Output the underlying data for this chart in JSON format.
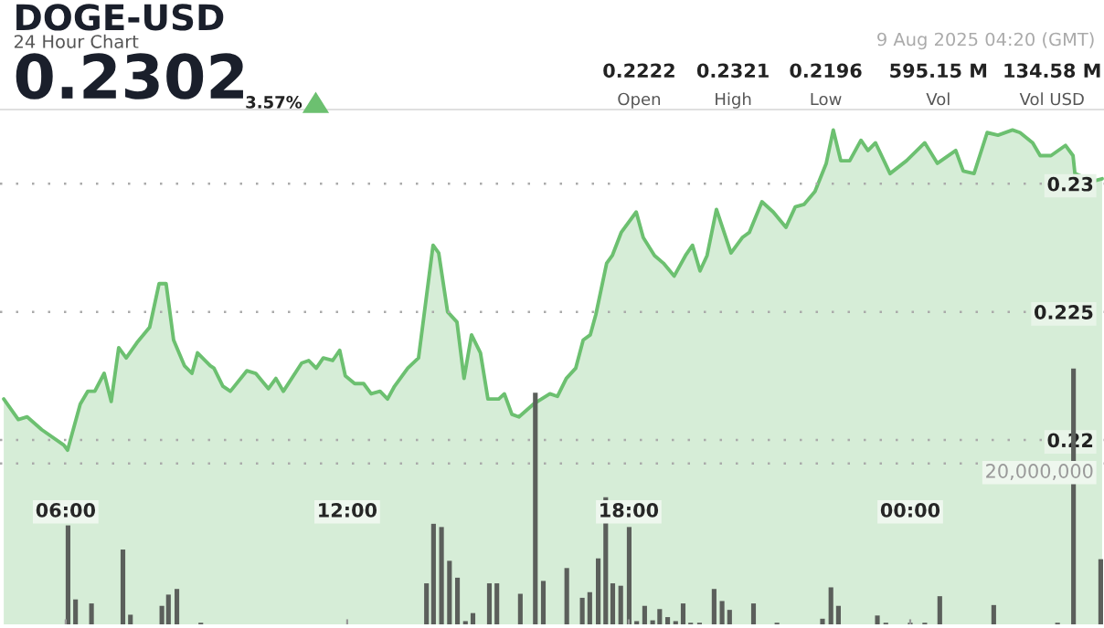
{
  "chart_data": {
    "type": "area",
    "title": "DOGE-USD",
    "subtitle": "24 Hour Chart",
    "annotations": [
      "0.2302",
      "3.57%",
      "9 Aug 2025 04:20 (GMT)",
      "0.2222",
      "Open",
      "0.2321",
      "High",
      "0.2196",
      "Low",
      "595.15 M",
      "Vol",
      "134.58 M",
      "Vol USD"
    ],
    "xlim": [
      4.6,
      28.13
    ],
    "xticks": [
      {
        "value": 6,
        "label": "06:00"
      },
      {
        "value": 12,
        "label": "12:00"
      },
      {
        "value": 18,
        "label": "18:00"
      },
      {
        "value": 24,
        "label": "00:00"
      }
    ],
    "ylim": [
      0.2128,
      0.2329
    ],
    "yticks": [
      0.22,
      0.225,
      0.23
    ],
    "y2lim": [
      0,
      64000000
    ],
    "y2ticks": [
      {
        "value": 20000000,
        "label": "20,000,000"
      }
    ],
    "grid": "y",
    "series": [
      {
        "color": "#6cc070",
        "x": [
          4.68,
          4.99,
          5.18,
          5.49,
          5.96,
          6.04,
          6.31,
          6.47,
          6.62,
          6.82,
          6.97,
          7.13,
          7.29,
          7.52,
          7.79,
          7.99,
          8.14,
          8.3,
          8.53,
          8.69,
          8.81,
          9.08,
          9.16,
          9.35,
          9.51,
          9.86,
          10.05,
          10.32,
          10.48,
          10.64,
          11.03,
          11.18,
          11.34,
          11.49,
          11.69,
          11.84,
          11.96,
          12.16,
          12.35,
          12.51,
          12.7,
          12.86,
          13.01,
          13.29,
          13.52,
          13.83,
          13.95,
          14.14,
          14.34,
          14.49,
          14.65,
          14.84,
          15.0,
          15.23,
          15.35,
          15.51,
          15.66,
          15.97,
          16.32,
          16.48,
          16.67,
          16.87,
          17.03,
          17.18,
          17.3,
          17.53,
          17.65,
          17.84,
          18.16,
          18.31,
          18.55,
          18.74,
          18.97,
          19.21,
          19.36,
          19.52,
          19.67,
          19.87,
          20.18,
          20.42,
          20.57,
          20.84,
          21.08,
          21.35,
          21.55,
          21.74,
          21.97,
          22.21,
          22.36,
          22.52,
          22.71,
          22.95,
          23.1,
          23.26,
          23.57,
          23.92,
          24.31,
          24.58,
          24.97,
          25.13,
          25.36,
          25.64,
          25.87,
          26.18,
          26.34,
          26.61,
          26.77,
          27.0,
          27.31,
          27.47,
          27.51,
          27.89,
          28.09
        ],
        "values": [
          0.2216,
          0.2208,
          0.2209,
          0.2204,
          0.2198,
          0.2196,
          0.2214,
          0.2219,
          0.2219,
          0.2226,
          0.2215,
          0.2236,
          0.2232,
          0.2238,
          0.2244,
          0.2261,
          0.2261,
          0.2239,
          0.2229,
          0.2226,
          0.2234,
          0.2229,
          0.2228,
          0.2221,
          0.2219,
          0.2227,
          0.2226,
          0.222,
          0.2224,
          0.2219,
          0.223,
          0.2231,
          0.2228,
          0.2232,
          0.2231,
          0.2235,
          0.2225,
          0.2222,
          0.2222,
          0.2218,
          0.2219,
          0.2216,
          0.2221,
          0.2228,
          0.2232,
          0.2276,
          0.2273,
          0.225,
          0.2246,
          0.2224,
          0.2241,
          0.2234,
          0.2216,
          0.2216,
          0.2218,
          0.221,
          0.2209,
          0.2214,
          0.2218,
          0.2217,
          0.2224,
          0.2228,
          0.2239,
          0.2241,
          0.2249,
          0.2269,
          0.2272,
          0.2281,
          0.2289,
          0.2279,
          0.2272,
          0.2269,
          0.2264,
          0.2272,
          0.2276,
          0.2266,
          0.2272,
          0.229,
          0.2273,
          0.2279,
          0.2281,
          0.2293,
          0.2289,
          0.2283,
          0.2291,
          0.2292,
          0.2297,
          0.2308,
          0.2321,
          0.2309,
          0.2309,
          0.2317,
          0.2313,
          0.2316,
          0.2304,
          0.2309,
          0.2316,
          0.2308,
          0.2313,
          0.2305,
          0.2304,
          0.232,
          0.2319,
          0.2321,
          0.232,
          0.2316,
          0.2311,
          0.2311,
          0.2315,
          0.2311,
          0.2304,
          0.2301,
          0.2302
        ]
      },
      {
        "type": "bar",
        "axis": "y2",
        "color": "#5b5f5b",
        "x": [
          6.05,
          6.21,
          6.55,
          7.22,
          7.38,
          8.05,
          8.19,
          8.37,
          8.88,
          13.69,
          13.84,
          14.01,
          14.18,
          14.35,
          14.52,
          14.68,
          15.03,
          15.19,
          15.69,
          16.01,
          16.18,
          16.68,
          17.01,
          17.17,
          17.35,
          17.51,
          17.66,
          17.83,
          18.01,
          18.17,
          18.34,
          18.51,
          18.66,
          18.83,
          19.0,
          19.16,
          19.32,
          19.51,
          19.82,
          19.99,
          20.15,
          20.66,
          21.16,
          22.13,
          22.31,
          22.47,
          23.3,
          23.48,
          24.0,
          24.31,
          24.63,
          25.78,
          27.14,
          27.48,
          28.06
        ],
        "values": [
          12300000,
          3100000,
          2600000,
          9300000,
          1200000,
          2300000,
          3700000,
          4400000,
          200000,
          5100000,
          12500000,
          12100000,
          7900000,
          5800000,
          400000,
          1400000,
          5100000,
          5100000,
          3800000,
          28800000,
          5400000,
          7000000,
          3300000,
          4000000,
          8200000,
          15800000,
          5100000,
          4800000,
          12100000,
          400000,
          2300000,
          500000,
          1900000,
          900000,
          400000,
          2600000,
          200000,
          200000,
          4400000,
          2900000,
          1800000,
          2600000,
          200000,
          700000,
          4600000,
          2300000,
          1100000,
          200000,
          200000,
          200000,
          3500000,
          2400000,
          200000,
          31800000,
          8100000
        ]
      }
    ]
  }
}
